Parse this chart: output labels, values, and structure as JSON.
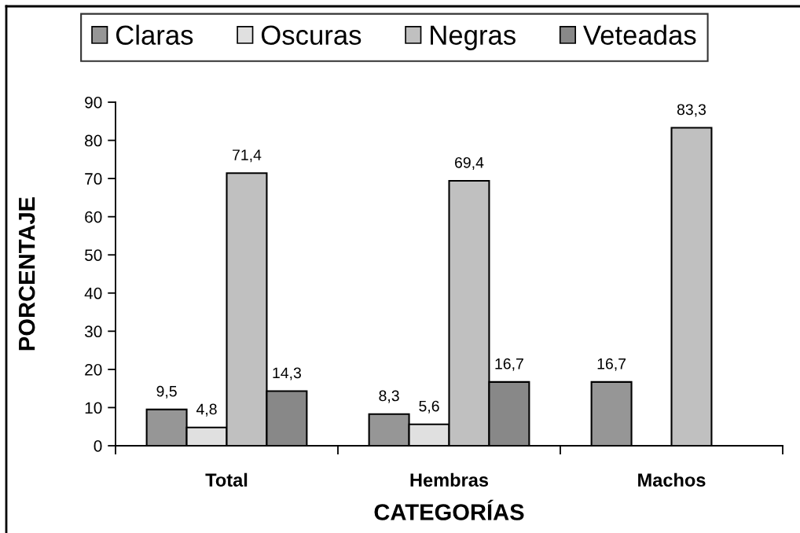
{
  "chart_data": {
    "type": "bar",
    "xlabel": "CATEGORÍAS",
    "ylabel": "PORCENTAJE",
    "categories": [
      "Total",
      "Hembras",
      "Machos"
    ],
    "series": [
      {
        "name": "Claras",
        "color": "#969696",
        "values": [
          9.5,
          8.3,
          16.7
        ],
        "value_labels": [
          "9,5",
          "8,3",
          "16,7"
        ]
      },
      {
        "name": "Oscuras",
        "color": "#e0e0e0",
        "values": [
          4.8,
          5.6,
          null
        ],
        "value_labels": [
          "4,8",
          "5,6",
          null
        ]
      },
      {
        "name": "Negras",
        "color": "#c0c0c0",
        "values": [
          71.4,
          69.4,
          83.3
        ],
        "value_labels": [
          "71,4",
          "69,4",
          "83,3"
        ]
      },
      {
        "name": "Veteadas",
        "color": "#888888",
        "values": [
          14.3,
          16.7,
          null
        ],
        "value_labels": [
          "14,3",
          "16,7",
          null
        ]
      }
    ],
    "ylim": [
      0,
      90
    ],
    "yticks": [
      0,
      10,
      20,
      30,
      40,
      50,
      60,
      70,
      80,
      90
    ],
    "legend": "top"
  }
}
